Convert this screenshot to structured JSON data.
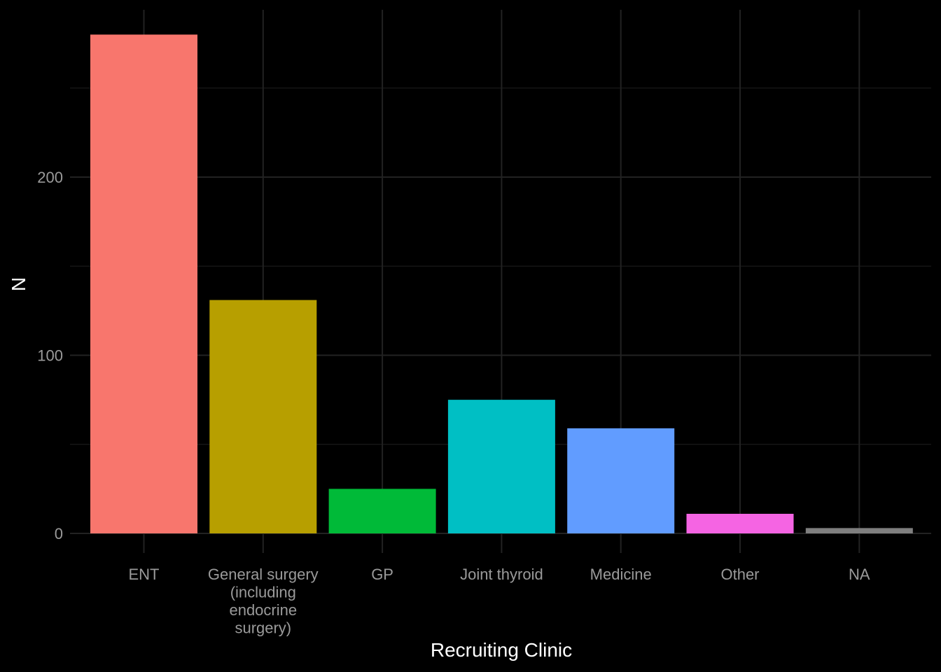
{
  "chart_data": {
    "type": "bar",
    "title": "",
    "xlabel": "Recruiting Clinic",
    "ylabel": "N",
    "categories": [
      [
        "ENT"
      ],
      [
        "General surgery",
        "(including",
        "endocrine",
        "surgery)"
      ],
      [
        "GP"
      ],
      [
        "Joint thyroid"
      ],
      [
        "Medicine"
      ],
      [
        "Other"
      ],
      [
        "NA"
      ]
    ],
    "values": [
      280,
      131,
      25,
      75,
      59,
      11,
      3
    ],
    "colors": [
      "#F8766D",
      "#B79F00",
      "#00BA38",
      "#00BFC4",
      "#619CFF",
      "#F564E3",
      "#7F7F7F"
    ],
    "ylim": [
      0,
      294
    ],
    "yticks": [
      0,
      100,
      200
    ],
    "yticks_minor": [
      50,
      150,
      250
    ],
    "grid": true,
    "legend": "none",
    "background": "#000000"
  }
}
